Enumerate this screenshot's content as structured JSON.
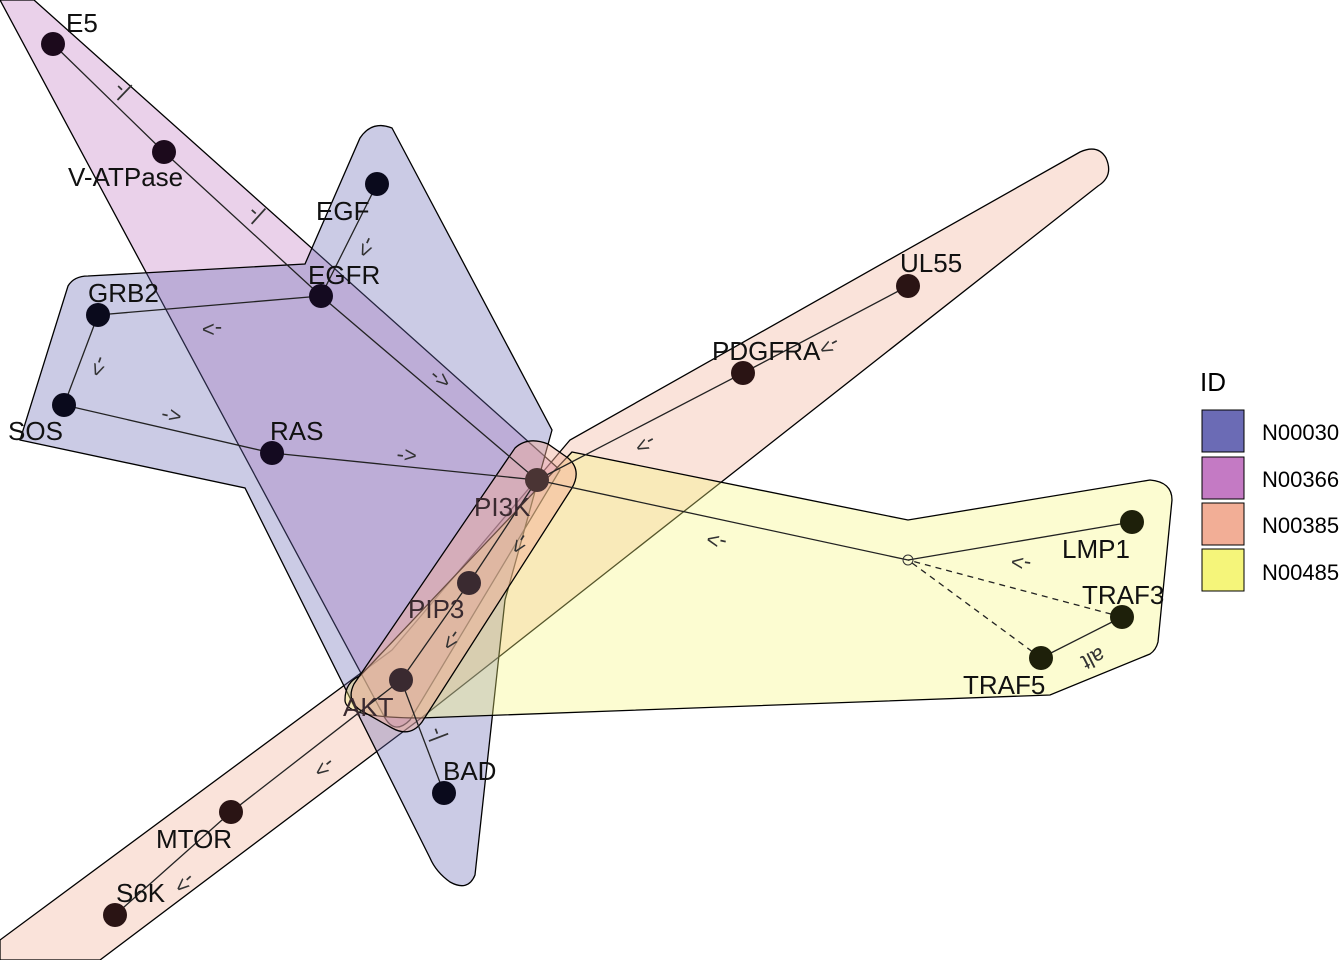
{
  "legend": {
    "title": "ID",
    "items": [
      {
        "label": "N00030",
        "color": "#6b6bb5"
      },
      {
        "label": "N00366",
        "color": "#c47ac4"
      },
      {
        "label": "N00385",
        "color": "#f2ae96"
      },
      {
        "label": "N00485",
        "color": "#f5f57a"
      }
    ]
  },
  "nodes": [
    {
      "id": "E5",
      "label": "E5"
    },
    {
      "id": "VATPase",
      "label": "V-ATPase"
    },
    {
      "id": "EGF",
      "label": "EGF"
    },
    {
      "id": "EGFR",
      "label": "EGFR"
    },
    {
      "id": "GRB2",
      "label": "GRB2"
    },
    {
      "id": "SOS",
      "label": "SOS"
    },
    {
      "id": "RAS",
      "label": "RAS"
    },
    {
      "id": "PI3K",
      "label": "PI3K"
    },
    {
      "id": "PIP3",
      "label": "PIP3"
    },
    {
      "id": "AKT",
      "label": "AKT"
    },
    {
      "id": "BAD",
      "label": "BAD"
    },
    {
      "id": "UL55",
      "label": "UL55"
    },
    {
      "id": "PDGFRA",
      "label": "PDGFRA"
    },
    {
      "id": "MTOR",
      "label": "MTOR"
    },
    {
      "id": "S6K",
      "label": "S6K"
    },
    {
      "id": "LMP1",
      "label": "LMP1"
    },
    {
      "id": "TRAF3",
      "label": "TRAF3"
    },
    {
      "id": "TRAF5",
      "label": "TRAF5"
    }
  ],
  "edges": [
    {
      "from": "E5",
      "to": "VATPase",
      "label": "-|"
    },
    {
      "from": "VATPase",
      "to": "EGFR",
      "label": "-|"
    },
    {
      "from": "EGF",
      "to": "EGFR",
      "label": "->"
    },
    {
      "from": "EGFR",
      "to": "GRB2",
      "label": "->"
    },
    {
      "from": "GRB2",
      "to": "SOS",
      "label": "->"
    },
    {
      "from": "SOS",
      "to": "RAS",
      "label": "->"
    },
    {
      "from": "RAS",
      "to": "PI3K",
      "label": "->"
    },
    {
      "from": "EGFR",
      "to": "PI3K",
      "label": "->"
    },
    {
      "from": "UL55",
      "to": "PDGFRA",
      "label": "->"
    },
    {
      "from": "PDGFRA",
      "to": "PI3K",
      "label": "->"
    },
    {
      "from": "PI3K",
      "to": "PIP3",
      "label": "->"
    },
    {
      "from": "PIP3",
      "to": "AKT",
      "label": "->"
    },
    {
      "from": "AKT",
      "to": "BAD",
      "label": "-|"
    },
    {
      "from": "AKT",
      "to": "MTOR",
      "label": "->"
    },
    {
      "from": "MTOR",
      "to": "S6K",
      "label": "->"
    },
    {
      "from": "LMP1",
      "to": "PI3K",
      "label": "->"
    },
    {
      "from": "TRAF5",
      "to": "TRAF3",
      "label": "alt"
    }
  ]
}
